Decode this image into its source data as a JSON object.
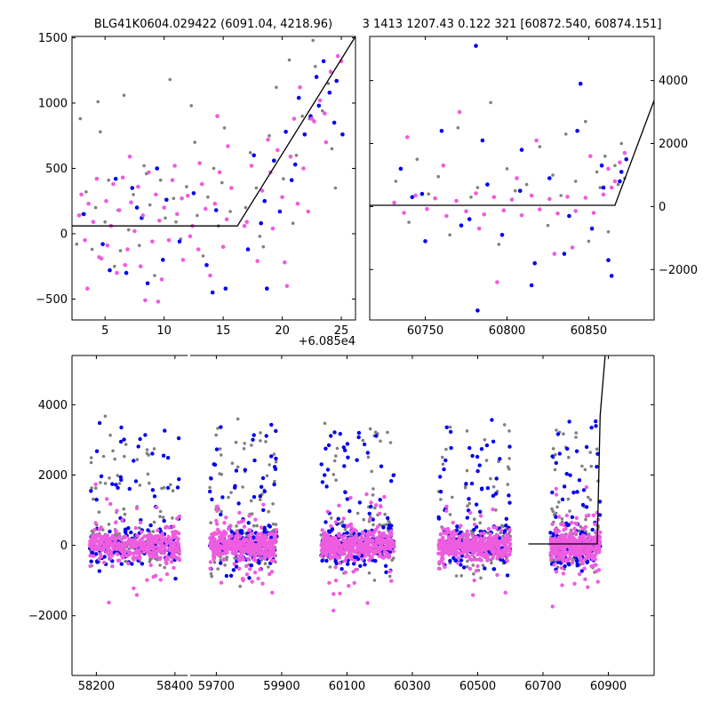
{
  "figure": {
    "title_left": "BLG41K0604.029422 (6091.04, 4218.96)",
    "title_right": "3 1413 1207.43 0.122 321 [60872.540, 60874.151]"
  },
  "colors": {
    "gray": "#808080",
    "blue": "#0000ee",
    "pink": "#ee5ce0",
    "line": "#000000"
  },
  "chart_data": [
    {
      "id": "zoom",
      "type": "scatter",
      "title": "",
      "xlabel": "",
      "ylabel": "",
      "x_offset_label": "+6.085e4",
      "xlim": [
        2.2,
        26.2
      ],
      "ylim": [
        -660,
        1510
      ],
      "xticks": [
        5,
        10,
        15,
        20,
        25
      ],
      "xtick_labels": [
        "5",
        "10",
        "15",
        "20",
        "25"
      ],
      "yticks": [
        -500,
        0,
        500,
        1000,
        1500
      ],
      "ytick_labels": [
        "−500",
        "0",
        "500",
        "1000",
        "1500"
      ],
      "model_line": {
        "x": [
          2.2,
          16.2,
          26.2
        ],
        "y": [
          60,
          60,
          1510
        ]
      },
      "series": [
        {
          "color": "gray",
          "x": [
            2.6,
            3.1,
            3.4,
            3.9,
            4.2,
            4.6,
            5.0,
            5.3,
            5.8,
            6.1,
            6.6,
            7.0,
            7.4,
            7.9,
            8.3,
            8.8,
            9.2,
            9.7,
            10.1,
            10.5,
            11.0,
            11.4,
            11.9,
            12.3,
            12.8,
            13.3,
            13.7,
            14.2,
            14.6,
            15.1,
            15.6,
            16.9,
            17.3,
            17.8,
            18.4,
            18.9,
            19.5,
            20.1,
            20.6,
            21.2,
            21.7,
            22.3,
            22.8,
            23.4,
            23.9,
            24.5,
            2.9,
            4.4,
            6.3,
            8.5,
            10.8,
            12.6,
            14.9,
            18.1,
            20.9,
            22.6,
            24.2
          ],
          "y": [
            -80,
            150,
            320,
            -120,
            200,
            780,
            90,
            410,
            -250,
            180,
            1060,
            30,
            300,
            -90,
            520,
            220,
            -320,
            410,
            120,
            1180,
            90,
            -40,
            360,
            980,
            140,
            -170,
            280,
            500,
            60,
            810,
            170,
            200,
            620,
            350,
            -100,
            750,
            1120,
            420,
            1330,
            600,
            900,
            880,
            1280,
            940,
            1150,
            350,
            880,
            1010,
            -130,
            460,
            270,
            700,
            390,
            -20,
            80,
            1480,
            650
          ]
        },
        {
          "color": "blue",
          "x": [
            3.2,
            4.8,
            5.9,
            6.8,
            7.3,
            8.1,
            8.6,
            9.4,
            10.2,
            11.3,
            12.5,
            13.6,
            14.4,
            15.2,
            17.1,
            17.6,
            18.2,
            18.7,
            19.3,
            19.8,
            20.3,
            20.8,
            21.4,
            21.9,
            22.4,
            22.9,
            23.5,
            24.0,
            24.6,
            25.1,
            5.4,
            7.7,
            9.9,
            14.1,
            18.5,
            21.1,
            23.1,
            24.4
          ],
          "y": [
            150,
            -80,
            420,
            -300,
            350,
            120,
            -380,
            500,
            260,
            -60,
            310,
            -240,
            180,
            -420,
            -120,
            600,
            80,
            -420,
            560,
            170,
            780,
            410,
            1040,
            760,
            900,
            1200,
            1320,
            1080,
            1170,
            760,
            -280,
            200,
            -200,
            -450,
            250,
            530,
            980,
            850
          ]
        },
        {
          "color": "pink",
          "x": [
            2.8,
            3.0,
            3.3,
            3.6,
            4.0,
            4.3,
            4.7,
            5.1,
            5.5,
            5.7,
            6.0,
            6.2,
            6.5,
            6.9,
            7.2,
            7.5,
            7.8,
            8.0,
            8.2,
            8.7,
            9.0,
            9.3,
            9.6,
            9.8,
            10.0,
            10.4,
            10.7,
            11.1,
            11.6,
            12.0,
            12.4,
            12.9,
            13.2,
            13.5,
            13.9,
            14.3,
            14.7,
            15.0,
            15.3,
            15.7,
            17.0,
            17.4,
            17.9,
            18.3,
            18.8,
            19.2,
            19.6,
            20.0,
            20.4,
            20.7,
            21.0,
            21.3,
            21.8,
            22.2,
            22.7,
            23.2,
            23.7,
            24.1,
            24.7,
            3.5,
            5.2,
            6.7,
            8.4,
            9.5,
            11.5,
            13.0,
            14.5,
            16.8,
            19.0,
            20.2,
            21.5,
            22.5,
            23.6,
            25.0,
            4.5,
            7.1,
            10.9,
            12.2,
            15.4
          ],
          "y": [
            140,
            300,
            -50,
            230,
            90,
            420,
            -190,
            250,
            60,
            380,
            -300,
            180,
            430,
            -120,
            240,
            20,
            360,
            -250,
            140,
            470,
            -60,
            300,
            100,
            -350,
            200,
            -50,
            410,
            150,
            -200,
            290,
            60,
            -120,
            380,
            190,
            -320,
            230,
            470,
            -100,
            110,
            350,
            90,
            520,
            -210,
            330,
            720,
            40,
            640,
            280,
            -400,
            590,
            880,
            230,
            500,
            170,
            860,
            1020,
            700,
            1240,
            1360,
            -420,
            -90,
            -240,
            -510,
            -520,
            270,
            540,
            900,
            60,
            470,
            -220,
            1120,
            880,
            920,
            1320,
            -180,
            590,
            520,
            -20,
            670
          ]
        }
      ]
    },
    {
      "id": "season",
      "type": "scatter",
      "title": "",
      "xlabel": "",
      "ylabel": "",
      "xlim": [
        60716,
        60890
      ],
      "ylim": [
        -3600,
        5400
      ],
      "xticks": [
        60750,
        60800,
        60850
      ],
      "xtick_labels": [
        "60750",
        "60800",
        "60850"
      ],
      "yticks": [
        -2000,
        0,
        2000,
        4000
      ],
      "ytick_labels": [
        "−2000",
        "0",
        "2000",
        "4000"
      ],
      "model_line": {
        "x": [
          60716,
          60866,
          60890
        ],
        "y": [
          40,
          40,
          3370
        ]
      },
      "series": [
        {
          "color": "gray",
          "x": [
            60732,
            60745,
            60758,
            60770,
            60782,
            60790,
            60800,
            60812,
            60820,
            60828,
            60836,
            60842,
            60848,
            60855,
            60860,
            60866,
            60870,
            60740,
            60765,
            60795,
            60825,
            60850,
            60862,
            60872,
            60752,
            60778,
            60805,
            60833,
            60857,
            60868
          ],
          "y": [
            800,
            1500,
            950,
            2500,
            600,
            3300,
            1200,
            700,
            1900,
            1000,
            2300,
            800,
            2700,
            1100,
            1600,
            1300,
            2000,
            -500,
            -900,
            -1200,
            -600,
            -1100,
            -800,
            900,
            400,
            300,
            500,
            350,
            600,
            700
          ]
        },
        {
          "color": "blue",
          "x": [
            60735,
            60748,
            60760,
            60772,
            60781,
            60788,
            60797,
            60809,
            60817,
            60826,
            60835,
            60843,
            60852,
            60858,
            60864,
            60869,
            60873,
            60750,
            60785,
            60815,
            60845,
            60862,
            60870,
            60742,
            60777,
            60808,
            60838,
            60859,
            60782
          ],
          "y": [
            1200,
            400,
            2400,
            -600,
            5100,
            700,
            -900,
            1800,
            -1800,
            900,
            -1500,
            2400,
            -700,
            1300,
            -2200,
            800,
            1500,
            -1100,
            2100,
            -2500,
            3900,
            -1700,
            1100,
            300,
            -400,
            500,
            -300,
            600,
            -3300
          ]
        },
        {
          "color": "pink",
          "x": [
            60731,
            60737,
            60744,
            60751,
            60756,
            60763,
            60769,
            60775,
            60781,
            60786,
            60792,
            60798,
            60803,
            60809,
            60815,
            60820,
            60826,
            60831,
            60837,
            60842,
            60848,
            60853,
            60859,
            60864,
            60869,
            60872,
            60739,
            60761,
            60783,
            60806,
            60829,
            60851,
            60866,
            60771,
            60794,
            60818,
            60840,
            60862
          ],
          "y": [
            120,
            -200,
            350,
            -80,
            260,
            -300,
            180,
            -150,
            420,
            -250,
            300,
            -120,
            220,
            -280,
            350,
            -90,
            240,
            -220,
            310,
            -140,
            280,
            -200,
            380,
            600,
            1400,
            1700,
            2200,
            1300,
            -700,
            900,
            -1500,
            1600,
            800,
            3000,
            -2400,
            2100,
            -1300,
            1200
          ]
        }
      ]
    },
    {
      "id": "full",
      "type": "scatter",
      "title": "",
      "xlabel": "",
      "ylabel": "",
      "ylim": [
        -3700,
        5400
      ],
      "yticks": [
        -2000,
        0,
        2000,
        4000
      ],
      "ytick_labels": [
        "−2000",
        "0",
        "2000",
        "4000"
      ],
      "segments": [
        {
          "xlim": [
            58138,
            58432
          ],
          "xticks": [
            58200,
            58400
          ],
          "xtick_labels": [
            "58200",
            "58400"
          ]
        },
        {
          "xlim": [
            59620,
            61040
          ],
          "xticks": [
            59700,
            59900,
            60100,
            60300,
            60500,
            60700,
            60900
          ],
          "xtick_labels": [
            "59700",
            "59900",
            "60100",
            "60300",
            "60500",
            "60700",
            "60900"
          ]
        }
      ],
      "clusters": [
        {
          "x": [
            58183,
            58412
          ]
        },
        {
          "x": [
            59680,
            59885
          ]
        },
        {
          "x": [
            60020,
            60245
          ]
        },
        {
          "x": [
            60380,
            60600
          ]
        },
        {
          "x": [
            60722,
            60875
          ]
        }
      ],
      "model_line": {
        "x": [
          60655,
          60866,
          60875,
          60890
        ],
        "y": [
          40,
          40,
          3700,
          5400
        ]
      }
    }
  ]
}
